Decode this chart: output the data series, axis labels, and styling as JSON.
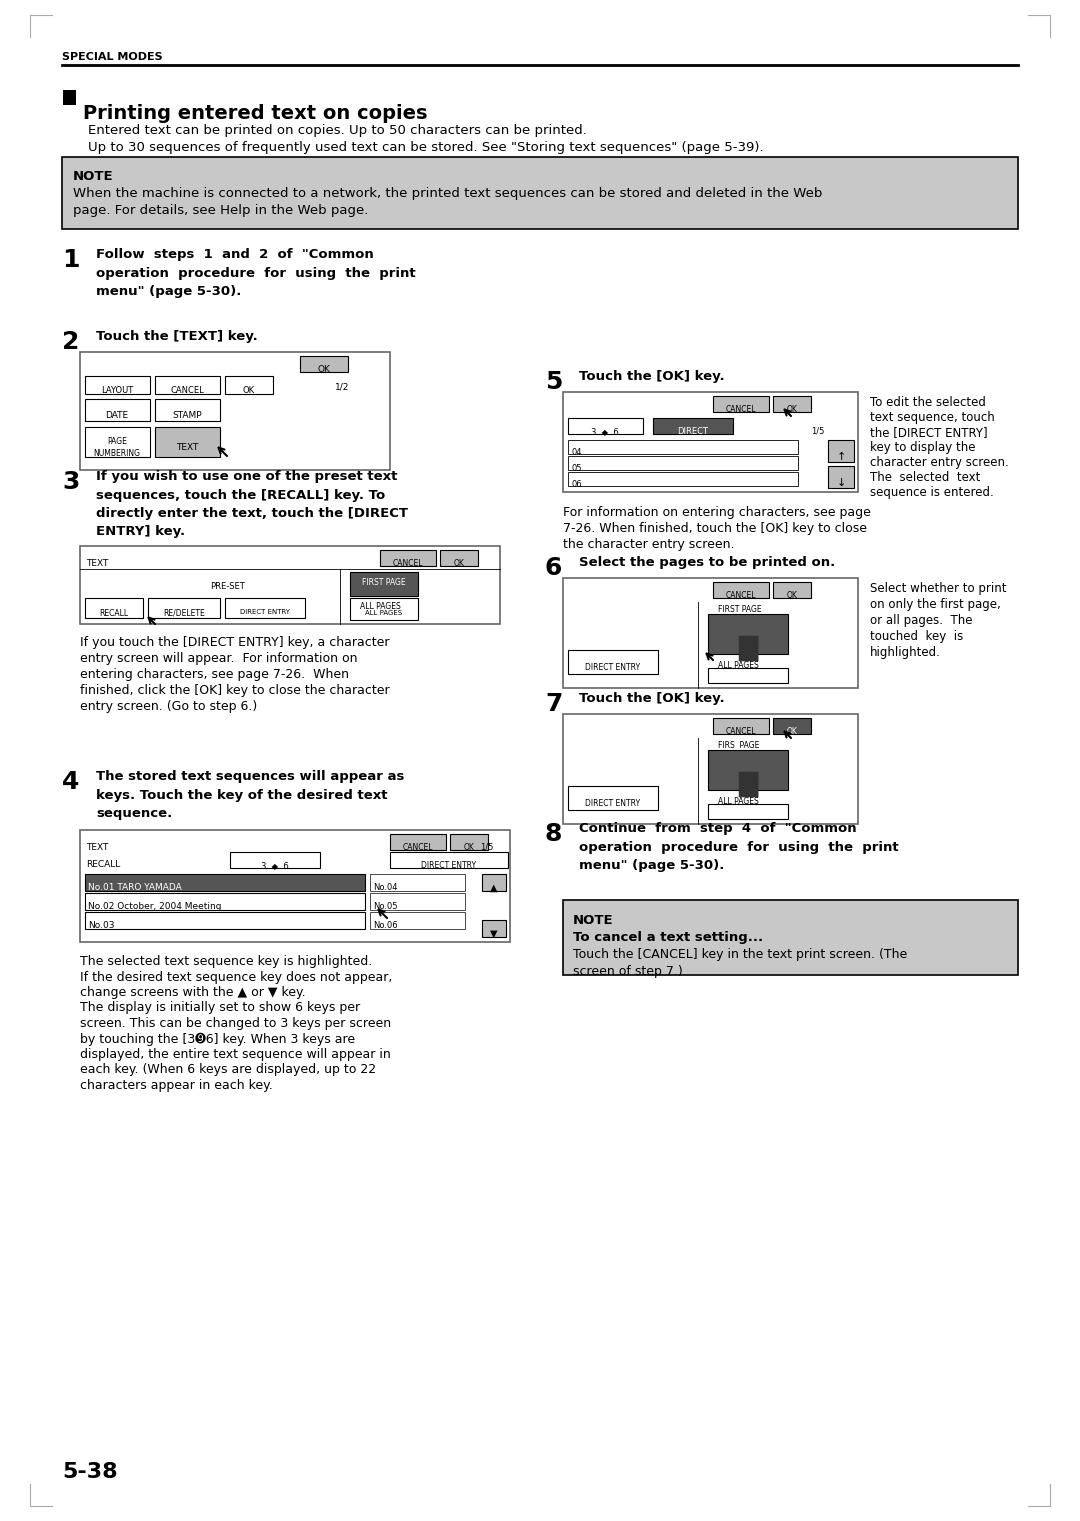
{
  "page_bg": "#ffffff",
  "header_text": "SPECIAL MODES",
  "section_title": "Printing entered text on copies",
  "intro_line1": "Entered text can be printed on copies. Up to 50 characters can be printed.",
  "intro_line2": "Up to 30 sequences of frequently used text can be stored. See \"Storing text sequences\" (page 5-39).",
  "note_bg": "#c8c8c8",
  "note_title": "NOTE",
  "note_text1": "When the machine is connected to a network, the printed text sequences can be stored and deleted in the Web",
  "note_text2": "page. For details, see Help in the Web page.",
  "step1_num": "1",
  "step2_num": "2",
  "step3_num": "3",
  "step4_num": "4",
  "step5_num": "5",
  "step6_num": "6",
  "step7_num": "7",
  "step8_num": "8",
  "step1_text": "Follow  steps  1  and  2  of  \"Common\noperation  procedure  for  using  the  print\nmenu\" (page 5-30).",
  "step2_text": "Touch the [TEXT] key.",
  "step3_text": "If you wish to use one of the preset text\nsequences, touch the [RECALL] key. To\ndirectly enter the text, touch the [DIRECT\nENTRY] key.",
  "step3_note": "If you touch the [DIRECT ENTRY] key, a character\nentry screen will appear.  For information on\nentering characters, see page 7-26.  When\nfinished, click the [OK] key to close the character\nentry screen. (Go to step 6.)",
  "step4_text": "The stored text sequences will appear as\nkeys. Touch the key of the desired text\nsequence.",
  "step4_note1": "The selected text sequence key is highlighted.",
  "step4_note2": "If the desired text sequence key does not appear,",
  "step4_note3": "change screens with the ▲ or ▼ key.",
  "step4_note4": "The display is initially set to show 6 keys per",
  "step4_note5": "screen. This can be changed to 3 keys per screen",
  "step4_note6": "by touching the [3➒6] key. When 3 keys are",
  "step4_note7": "displayed, the entire text sequence will appear in",
  "step4_note8": "each key. (When 6 keys are displayed, up to 22",
  "step4_note9": "characters appear in each key.",
  "step5_text": "Touch the [OK] key.",
  "step5_sidenote1": "To edit the selected",
  "step5_sidenote2": "text sequence, touch",
  "step5_sidenote3": "the [DIRECT ENTRY]",
  "step5_sidenote4": "key to display the",
  "step5_sidenote5": "character entry screen.",
  "step5_sidenote6": "The  selected  text",
  "step5_sidenote7": "sequence is entered.",
  "step5_note1": "For information on entering characters, see page",
  "step5_note2": "7-26. When finished, touch the [OK] key to close",
  "step5_note3": "the character entry screen.",
  "step6_text": "Select the pages to be printed on.",
  "step6_sidenote1": "Select whether to print",
  "step6_sidenote2": "on only the first page,",
  "step6_sidenote3": "or all pages.  The",
  "step6_sidenote4": "touched  key  is",
  "step6_sidenote5": "highlighted.",
  "step7_text": "Touch the [OK] key.",
  "step8_text": "Continue  from  step  4  of  \"Common\noperation  procedure  for  using  the  print\nmenu\" (page 5-30).",
  "note2_title": "NOTE",
  "note2_bold": "To cancel a text setting...",
  "note2_text": "Touch the [CANCEL] key in the text print screen. (The\nscreen of step 7.)",
  "footer_text": "5-38",
  "tick_color": "#aaaaaa",
  "ui_border": "#666666",
  "ui_gray": "#bbbbbb",
  "ui_dark": "#555555"
}
